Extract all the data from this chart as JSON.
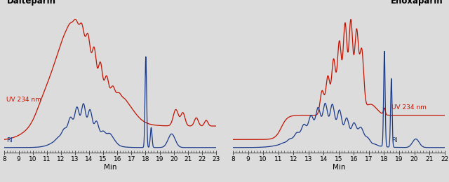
{
  "background_color": "#dcdcdc",
  "red_color": "#c41200",
  "blue_color": "#1a3a8a",
  "title_left": "Dalteparin",
  "title_right": "Enoxaparin",
  "xlabel": "Min",
  "label_uv": "UV 234 nm",
  "label_ri": "RI",
  "left_xlim": [
    8,
    23
  ],
  "right_xlim": [
    8,
    22
  ],
  "left_xticks": [
    8,
    9,
    10,
    11,
    12,
    13,
    14,
    15,
    16,
    17,
    18,
    19,
    20,
    21,
    22,
    23
  ],
  "right_xticks": [
    8,
    9,
    10,
    11,
    12,
    13,
    14,
    15,
    16,
    17,
    18,
    19,
    20,
    21,
    22
  ]
}
